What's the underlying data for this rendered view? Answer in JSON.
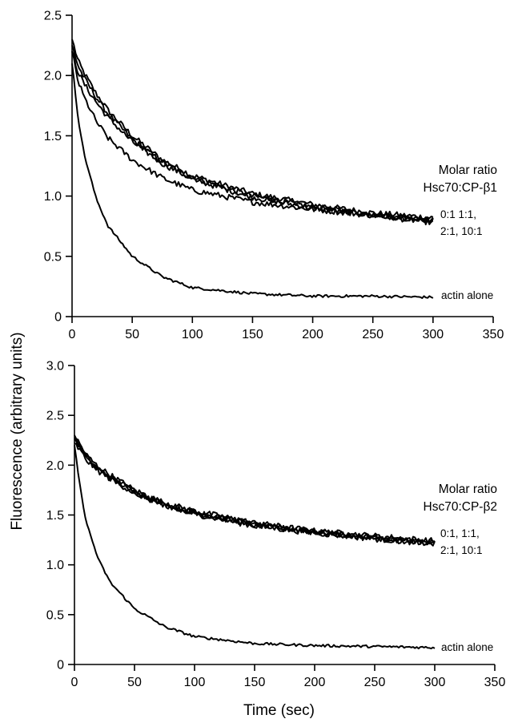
{
  "y_title": "Fluorescence (arbitrary units)",
  "chart_data": [
    {
      "type": "line",
      "xlabel": "",
      "ylabel": "Fluorescence (arbitrary units)",
      "xlim": [
        0,
        350
      ],
      "ylim": [
        0,
        2.5
      ],
      "x_ticks": [
        "0",
        "50",
        "100",
        "150",
        "200",
        "250",
        "300",
        "350"
      ],
      "y_ticks": [
        "0",
        "0.5",
        "1.0",
        "1.5",
        "2.0",
        "2.5"
      ],
      "grid": false,
      "legend_title": [
        "Molar ratio",
        "Hsc70:CP-β1"
      ],
      "series_group_label": [
        "0:1 1:1,",
        "2:1, 10:1"
      ],
      "control_label": "actin alone",
      "series": [
        {
          "x": [
            0,
            5,
            10,
            20,
            30,
            50,
            75,
            100,
            150,
            200,
            250,
            300
          ],
          "values": [
            2.3,
            2.12,
            2.02,
            1.85,
            1.71,
            1.5,
            1.3,
            1.17,
            1.02,
            0.93,
            0.86,
            0.82
          ]
        },
        {
          "x": [
            0,
            5,
            10,
            20,
            30,
            50,
            75,
            100,
            150,
            200,
            250,
            300
          ],
          "values": [
            2.25,
            2.08,
            1.98,
            1.82,
            1.68,
            1.47,
            1.28,
            1.15,
            1.0,
            0.91,
            0.85,
            0.8
          ]
        },
        {
          "x": [
            0,
            5,
            10,
            20,
            30,
            50,
            75,
            100,
            150,
            200,
            250,
            300
          ],
          "values": [
            2.2,
            2.03,
            1.93,
            1.78,
            1.65,
            1.45,
            1.27,
            1.14,
            0.99,
            0.9,
            0.84,
            0.78
          ]
        },
        {
          "x": [
            0,
            5,
            10,
            20,
            30,
            50,
            75,
            100,
            150,
            200,
            250,
            300
          ],
          "values": [
            2.2,
            1.95,
            1.82,
            1.62,
            1.48,
            1.3,
            1.15,
            1.05,
            0.95,
            0.89,
            0.84,
            0.8
          ]
        },
        {
          "x": [
            0,
            5,
            10,
            20,
            30,
            50,
            75,
            100,
            150,
            200,
            250,
            300
          ],
          "values": [
            2.1,
            1.65,
            1.35,
            0.98,
            0.75,
            0.5,
            0.33,
            0.24,
            0.19,
            0.17,
            0.17,
            0.16
          ]
        }
      ]
    },
    {
      "type": "line",
      "xlabel": "Time (sec)",
      "ylabel": "Fluorescence (arbitrary units)",
      "xlim": [
        0,
        350
      ],
      "ylim": [
        0,
        3.0
      ],
      "x_ticks": [
        "0",
        "50",
        "100",
        "150",
        "200",
        "250",
        "300",
        "350"
      ],
      "y_ticks": [
        "0",
        "0.5",
        "1.0",
        "1.5",
        "2.0",
        "2.5",
        "3.0"
      ],
      "grid": false,
      "legend_title": [
        "Molar ratio",
        "Hsc70:CP-β2"
      ],
      "series_group_label": [
        "0:1, 1:1,",
        "2:1, 10:1"
      ],
      "control_label": "actin alone",
      "series": [
        {
          "x": [
            0,
            5,
            10,
            20,
            30,
            50,
            75,
            100,
            150,
            200,
            250,
            300
          ],
          "values": [
            2.3,
            2.2,
            2.1,
            1.98,
            1.9,
            1.75,
            1.62,
            1.54,
            1.42,
            1.34,
            1.29,
            1.24
          ]
        },
        {
          "x": [
            0,
            5,
            10,
            20,
            30,
            50,
            75,
            100,
            150,
            200,
            250,
            300
          ],
          "values": [
            2.26,
            2.17,
            2.08,
            1.96,
            1.88,
            1.73,
            1.6,
            1.52,
            1.4,
            1.33,
            1.27,
            1.22
          ]
        },
        {
          "x": [
            0,
            5,
            10,
            20,
            30,
            50,
            75,
            100,
            150,
            200,
            250,
            300
          ],
          "values": [
            2.22,
            2.14,
            2.05,
            1.94,
            1.86,
            1.72,
            1.59,
            1.51,
            1.39,
            1.32,
            1.26,
            1.21
          ]
        },
        {
          "x": [
            0,
            5,
            10,
            20,
            30,
            50,
            75,
            100,
            150,
            200,
            250,
            300
          ],
          "values": [
            2.28,
            2.18,
            2.07,
            1.95,
            1.87,
            1.74,
            1.61,
            1.53,
            1.41,
            1.33,
            1.28,
            1.2
          ]
        },
        {
          "x": [
            0,
            5,
            10,
            20,
            30,
            50,
            75,
            100,
            150,
            200,
            250,
            300
          ],
          "values": [
            2.2,
            1.75,
            1.42,
            1.05,
            0.82,
            0.56,
            0.38,
            0.28,
            0.21,
            0.19,
            0.18,
            0.17
          ]
        }
      ]
    }
  ]
}
